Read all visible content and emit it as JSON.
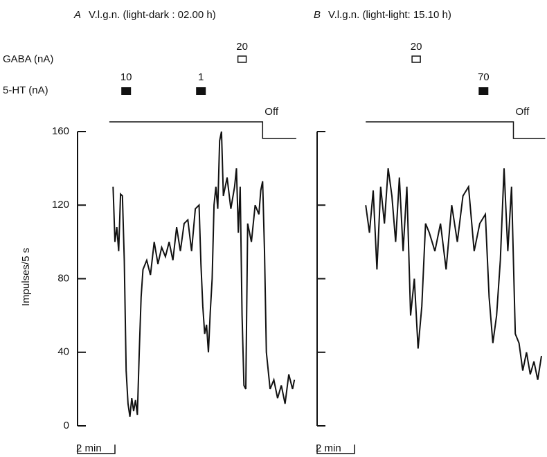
{
  "chart_data": [
    {
      "type": "line",
      "panel": "A",
      "title": "V.l.g.n. (light-dark : 02.00 h)",
      "y_label": "Impulses/5 s",
      "gaba_label": "GABA (nA)",
      "serotonin_label": "5-HT (nA)",
      "xlim": [
        0,
        12.2
      ],
      "ylim": [
        0,
        160
      ],
      "yticks": [
        0,
        40,
        80,
        120,
        160
      ],
      "color": "#111111",
      "x": [
        1.9,
        2.0,
        2.1,
        2.2,
        2.3,
        2.4,
        2.5,
        2.6,
        2.7,
        2.8,
        2.9,
        3.0,
        3.1,
        3.2,
        3.3,
        3.4,
        3.5,
        3.7,
        3.9,
        4.1,
        4.3,
        4.5,
        4.7,
        4.9,
        5.1,
        5.3,
        5.5,
        5.7,
        5.9,
        6.1,
        6.3,
        6.5,
        6.6,
        6.7,
        6.8,
        6.9,
        7.0,
        7.1,
        7.2,
        7.3,
        7.4,
        7.5,
        7.6,
        7.7,
        7.8,
        8.0,
        8.2,
        8.4,
        8.5,
        8.6,
        8.7,
        8.8,
        8.9,
        9.0,
        9.1,
        9.3,
        9.5,
        9.7,
        9.8,
        9.9,
        10.0,
        10.1,
        10.3,
        10.5,
        10.7,
        10.9,
        11.1,
        11.3,
        11.5,
        11.6
      ],
      "values": [
        130,
        100,
        108,
        95,
        126,
        125,
        90,
        30,
        12,
        5,
        15,
        8,
        14,
        6,
        40,
        70,
        85,
        90,
        82,
        100,
        88,
        97,
        92,
        100,
        90,
        108,
        95,
        110,
        112,
        95,
        118,
        120,
        88,
        65,
        50,
        55,
        40,
        62,
        80,
        120,
        130,
        118,
        155,
        160,
        125,
        135,
        118,
        130,
        140,
        105,
        130,
        60,
        22,
        20,
        110,
        100,
        120,
        115,
        128,
        133,
        95,
        40,
        20,
        25,
        15,
        22,
        12,
        28,
        20,
        25
      ],
      "gaba": [
        {
          "current": 20,
          "t": 8.8
        }
      ],
      "serotonin": [
        {
          "current": 10,
          "t": 2.6
        },
        {
          "current": 1,
          "t": 6.6
        }
      ],
      "light": {
        "label": "Off",
        "start": 1.7,
        "off": 9.9,
        "end": 11.7
      },
      "scale_bar": {
        "label": "2 min",
        "length": 2
      }
    },
    {
      "type": "line",
      "panel": "B",
      "title": "V.l.g.n. (light-light: 15.10 h)",
      "xlim": [
        0,
        12.2
      ],
      "ylim": [
        0,
        160
      ],
      "yticks": [
        0,
        40,
        80,
        120,
        160
      ],
      "color": "#111111",
      "x": [
        2.6,
        2.8,
        3.0,
        3.2,
        3.4,
        3.6,
        3.8,
        4.0,
        4.2,
        4.4,
        4.6,
        4.8,
        5.0,
        5.2,
        5.4,
        5.6,
        5.8,
        6.0,
        6.3,
        6.6,
        6.9,
        7.2,
        7.5,
        7.8,
        8.1,
        8.4,
        8.7,
        9.0,
        9.2,
        9.4,
        9.6,
        9.8,
        10.0,
        10.2,
        10.4,
        10.6,
        10.8,
        11.0,
        11.2,
        11.4,
        11.6,
        11.8,
        12.0
      ],
      "values": [
        120,
        105,
        128,
        85,
        130,
        110,
        140,
        125,
        100,
        135,
        95,
        130,
        60,
        80,
        42,
        65,
        110,
        105,
        95,
        110,
        85,
        120,
        100,
        125,
        130,
        95,
        110,
        115,
        70,
        45,
        60,
        90,
        140,
        95,
        130,
        50,
        45,
        30,
        40,
        28,
        35,
        25,
        38
      ],
      "gaba": [
        {
          "current": 20,
          "t": 5.3
        }
      ],
      "serotonin": [
        {
          "current": 70,
          "t": 8.9
        }
      ],
      "light": {
        "label": "Off",
        "start": 2.6,
        "off": 10.5,
        "end": 12.2
      },
      "scale_bar": {
        "label": "2 min",
        "length": 2
      }
    }
  ]
}
